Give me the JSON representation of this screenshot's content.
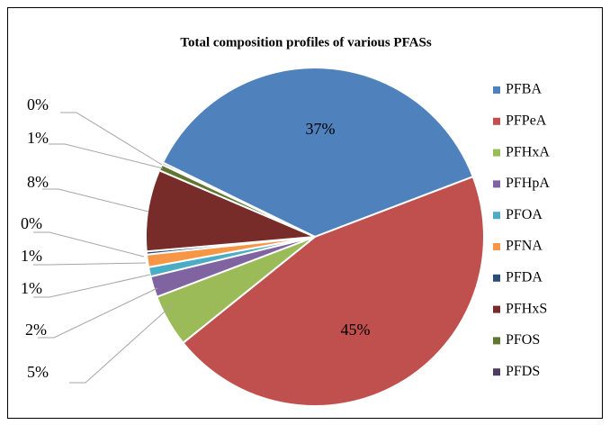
{
  "chart_data": {
    "type": "pie",
    "title": "Total composition profiles of various PFASs",
    "categories": [
      "PFBA",
      "PFPeA",
      "PFHxA",
      "PFHpA",
      "PFOA",
      "PFNA",
      "PFDA",
      "PFHxS",
      "PFOS",
      "PFDS"
    ],
    "values": [
      37,
      45,
      5,
      2,
      0.9,
      1.2,
      0.3,
      7.8,
      0.6,
      0.2
    ],
    "value_labels": [
      "37%",
      "45%",
      "5%",
      "2%",
      "1%",
      "1%",
      "0%",
      "8%",
      "1%",
      "0%"
    ],
    "colors": [
      "#4f81bd",
      "#c0504d",
      "#9bbb59",
      "#8064a2",
      "#4bacc6",
      "#f79646",
      "#2c4d75",
      "#772c2a",
      "#5f7530",
      "#4d3b62"
    ],
    "legend": "right"
  }
}
